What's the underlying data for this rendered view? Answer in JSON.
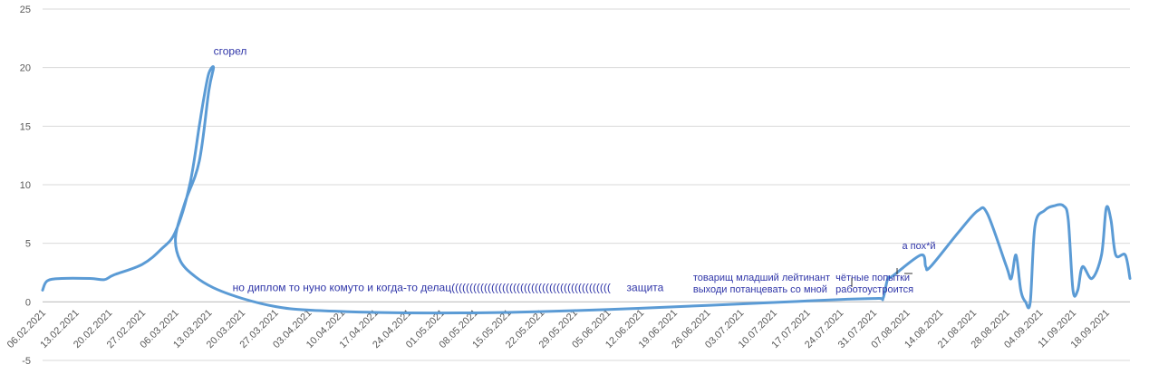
{
  "chart_data": {
    "type": "line",
    "title": "",
    "xlabel": "",
    "ylabel": "",
    "ylim": [
      -5,
      25
    ],
    "yticks": [
      -5,
      0,
      5,
      10,
      15,
      20,
      25
    ],
    "grid": true,
    "legend": "none",
    "line_color": "#5b9bd5",
    "grid_color": "#d9d9d9",
    "annotation_color": "#2f35a8",
    "x_tick_labels": [
      "06.02.2021",
      "13.02.2021",
      "20.02.2021",
      "27.02.2021",
      "06.03.2021",
      "13.03.2021",
      "20.03.2021",
      "27.03.2021",
      "03.04.2021",
      "10.04.2021",
      "17.04.2021",
      "24.04.2021",
      "01.05.2021",
      "08.05.2021",
      "15.05.2021",
      "22.05.2021",
      "29.05.2021",
      "05.06.2021",
      "12.06.2021",
      "19.06.2021",
      "26.06.2021",
      "03.07.2021",
      "10.07.2021",
      "17.07.2021",
      "24.07.2021",
      "31.07.2021",
      "07.08.2021",
      "14.08.2021",
      "21.08.2021",
      "28.08.2021",
      "04.09.2021",
      "11.09.2021",
      "18.09.2021"
    ],
    "series": [
      {
        "points": [
          [
            "06.02.2021",
            1
          ],
          [
            "07.02.2021",
            1.8
          ],
          [
            "10.02.2021",
            2
          ],
          [
            "16.02.2021",
            2
          ],
          [
            "19.02.2021",
            1.9
          ],
          [
            "21.02.2021",
            2.3
          ],
          [
            "27.02.2021",
            3.2
          ],
          [
            "03.03.2021",
            4.5
          ],
          [
            "06.03.2021",
            6
          ],
          [
            "09.03.2021",
            10
          ],
          [
            "11.03.2021",
            15
          ],
          [
            "12.03.2021",
            17.5
          ],
          [
            "13.03.2021",
            19.5
          ],
          [
            "14.03.2021",
            20
          ],
          [
            "13.03.2021",
            18
          ],
          [
            "11.03.2021",
            12
          ],
          [
            "08.03.2021",
            8.5
          ],
          [
            "06.03.2021",
            5.5
          ],
          [
            "07.03.2021",
            3.5
          ],
          [
            "10.03.2021",
            2.2
          ],
          [
            "14.03.2021",
            1.2
          ],
          [
            "20.03.2021",
            0.3
          ],
          [
            "27.03.2021",
            -0.4
          ],
          [
            "03.04.2021",
            -0.7
          ],
          [
            "17.04.2021",
            -0.9
          ],
          [
            "01.05.2021",
            -0.95
          ],
          [
            "15.05.2021",
            -0.9
          ],
          [
            "29.05.2021",
            -0.75
          ],
          [
            "12.06.2021",
            -0.55
          ],
          [
            "26.06.2021",
            -0.3
          ],
          [
            "10.07.2021",
            -0.05
          ],
          [
            "24.07.2021",
            0.2
          ],
          [
            "01.08.2021",
            0.3
          ],
          [
            "02.08.2021",
            0.3
          ],
          [
            "03.08.2021",
            2
          ],
          [
            "04.08.2021",
            2.2
          ],
          [
            "10.08.2021",
            4
          ],
          [
            "11.08.2021",
            3
          ],
          [
            "12.08.2021",
            3
          ],
          [
            "18.08.2021",
            6
          ],
          [
            "22.08.2021",
            7.8
          ],
          [
            "24.08.2021",
            7.5
          ],
          [
            "28.08.2021",
            3
          ],
          [
            "29.08.2021",
            2
          ],
          [
            "30.08.2021",
            4
          ],
          [
            "31.08.2021",
            1
          ],
          [
            "01.09.2021",
            0
          ],
          [
            "02.09.2021",
            0
          ],
          [
            "03.09.2021",
            6.5
          ],
          [
            "05.09.2021",
            7.8
          ],
          [
            "07.09.2021",
            8.2
          ],
          [
            "09.09.2021",
            8.2
          ],
          [
            "10.09.2021",
            7
          ],
          [
            "11.09.2021",
            1
          ],
          [
            "12.09.2021",
            1
          ],
          [
            "13.09.2021",
            3
          ],
          [
            "15.09.2021",
            2
          ],
          [
            "17.09.2021",
            4
          ],
          [
            "18.09.2021",
            8
          ],
          [
            "19.09.2021",
            7
          ],
          [
            "20.09.2021",
            4
          ],
          [
            "22.09.2021",
            4
          ],
          [
            "23.09.2021",
            2
          ]
        ]
      }
    ],
    "annotations": [
      {
        "text": "сгорел",
        "x": "14.03.2021",
        "y": 21.1,
        "size": 12
      },
      {
        "text": "но диплом то нуно комуто и когда-то делац((((((((((((((((((((((((((((((((((((((((((((",
        "x": "18.03.2021",
        "y": 0.9,
        "size": 12
      },
      {
        "text": "защита",
        "x": "09.06.2021",
        "y": 0.9,
        "size": 12
      },
      {
        "text": "товарищ младший лейтинант",
        "x": "23.06.2021",
        "y": 1.8,
        "size": 11
      },
      {
        "text": "выходи потанцевать со мной",
        "x": "23.06.2021",
        "y": 0.8,
        "size": 11
      },
      {
        "text": "чётные попытки",
        "x": "23.07.2021",
        "y": 1.8,
        "size": 11
      },
      {
        "text": "работоустроится",
        "x": "23.07.2021",
        "y": 0.8,
        "size": 11
      },
      {
        "text": "а пох*й",
        "x": "06.08.2021",
        "y": 4.5,
        "size": 11
      }
    ]
  }
}
